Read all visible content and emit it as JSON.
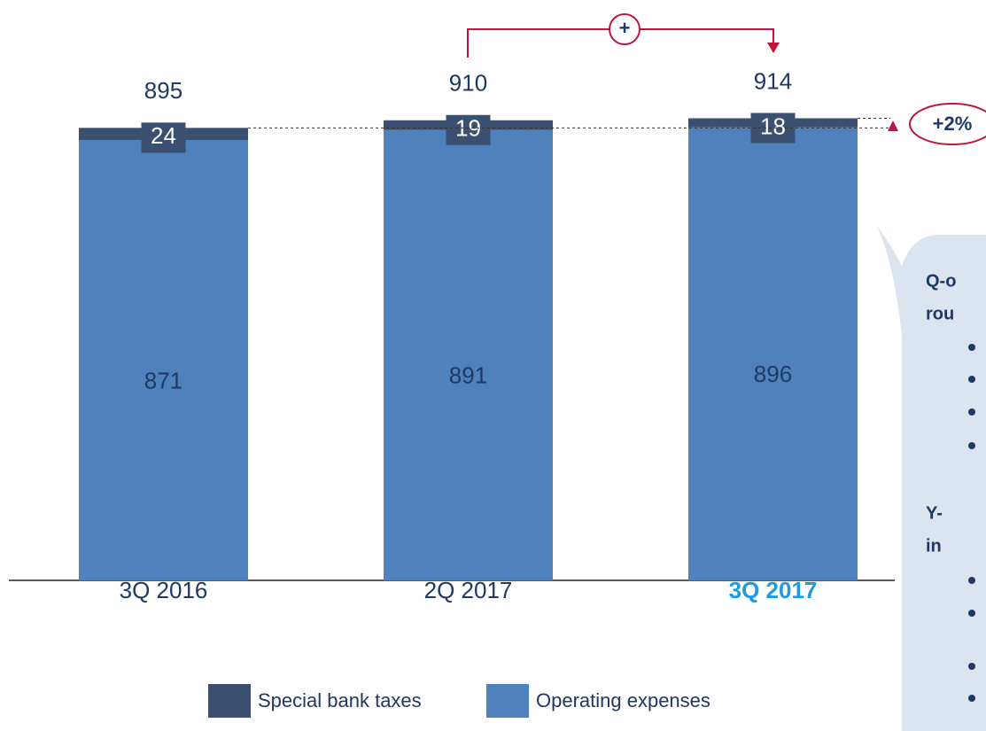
{
  "chart_data": {
    "type": "stacked_bar",
    "categories": [
      "3Q 2016",
      "2Q 2017",
      "3Q 2017"
    ],
    "highlight_category": "3Q 2017",
    "series": [
      {
        "name": "Operating expenses",
        "color": "#4f81bd",
        "values": [
          871,
          891,
          896
        ]
      },
      {
        "name": "Special bank taxes",
        "color": "#3b5070",
        "values": [
          24,
          19,
          18
        ]
      }
    ],
    "totals": [
      895,
      910,
      914
    ],
    "annotations": [
      "+",
      "+2%"
    ],
    "panel_lines": [
      "Q-o",
      "rou",
      "Y-",
      "in"
    ]
  }
}
